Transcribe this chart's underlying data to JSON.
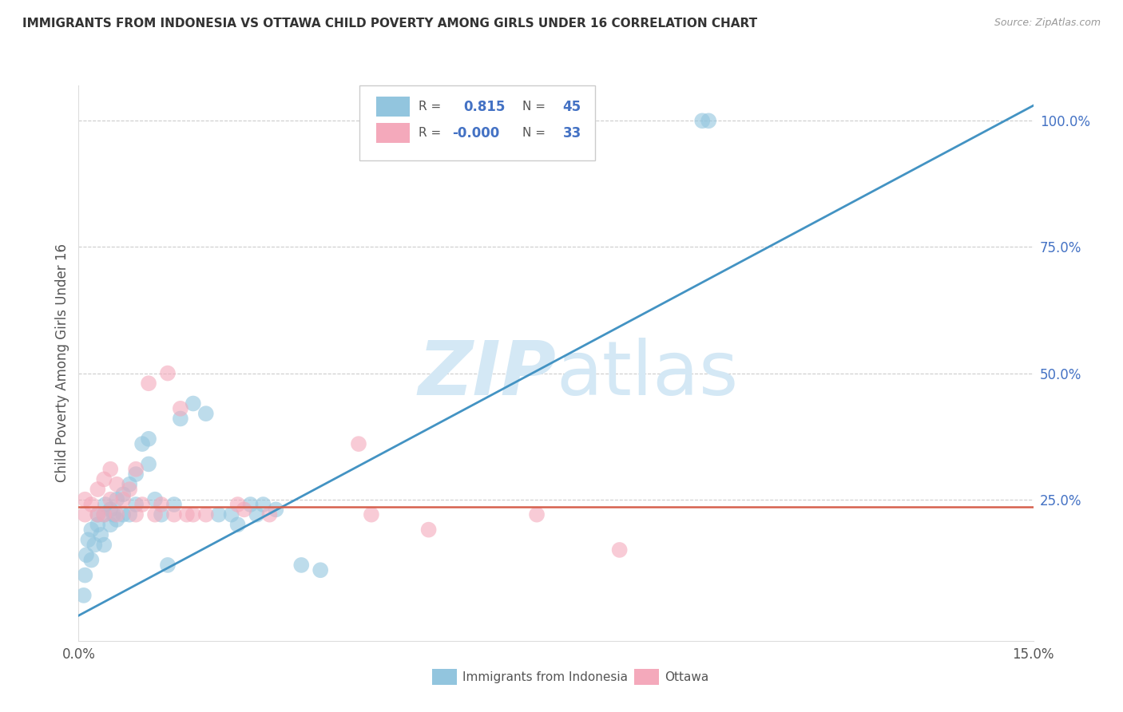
{
  "title": "IMMIGRANTS FROM INDONESIA VS OTTAWA CHILD POVERTY AMONG GIRLS UNDER 16 CORRELATION CHART",
  "source": "Source: ZipAtlas.com",
  "ylabel": "Child Poverty Among Girls Under 16",
  "right_ytick_labels": [
    "100.0%",
    "75.0%",
    "50.0%",
    "25.0%"
  ],
  "right_ytick_values": [
    1.0,
    0.75,
    0.5,
    0.25
  ],
  "legend_blue_r": "0.815",
  "legend_blue_n": "45",
  "legend_pink_r": "-0.000",
  "legend_pink_n": "33",
  "legend_label_blue": "Immigrants from Indonesia",
  "legend_label_pink": "Ottawa",
  "blue_scatter_color": "#92c5de",
  "pink_scatter_color": "#f4a9bb",
  "blue_line_color": "#4393c3",
  "pink_line_color": "#d6604d",
  "title_color": "#333333",
  "right_axis_color": "#4472c4",
  "legend_text_color": "#555555",
  "watermark_color": "#d4e8f5",
  "xmin": 0.0,
  "xmax": 0.15,
  "ymin": -0.03,
  "ymax": 1.07,
  "blue_scatter_x": [
    0.0008,
    0.001,
    0.0012,
    0.0015,
    0.002,
    0.002,
    0.0025,
    0.003,
    0.003,
    0.0035,
    0.004,
    0.004,
    0.0042,
    0.005,
    0.005,
    0.0055,
    0.006,
    0.006,
    0.007,
    0.007,
    0.008,
    0.008,
    0.009,
    0.009,
    0.01,
    0.011,
    0.011,
    0.012,
    0.013,
    0.014,
    0.015,
    0.016,
    0.018,
    0.02,
    0.022,
    0.024,
    0.025,
    0.027,
    0.028,
    0.029,
    0.031,
    0.035,
    0.038,
    0.098,
    0.099
  ],
  "blue_scatter_y": [
    0.06,
    0.1,
    0.14,
    0.17,
    0.13,
    0.19,
    0.16,
    0.2,
    0.22,
    0.18,
    0.16,
    0.22,
    0.24,
    0.2,
    0.23,
    0.22,
    0.21,
    0.25,
    0.22,
    0.26,
    0.22,
    0.28,
    0.24,
    0.3,
    0.36,
    0.32,
    0.37,
    0.25,
    0.22,
    0.12,
    0.24,
    0.41,
    0.44,
    0.42,
    0.22,
    0.22,
    0.2,
    0.24,
    0.22,
    0.24,
    0.23,
    0.12,
    0.11,
    1.0,
    1.0
  ],
  "pink_scatter_x": [
    0.001,
    0.001,
    0.002,
    0.003,
    0.003,
    0.004,
    0.004,
    0.005,
    0.005,
    0.006,
    0.006,
    0.007,
    0.008,
    0.009,
    0.009,
    0.01,
    0.011,
    0.012,
    0.013,
    0.014,
    0.015,
    0.016,
    0.017,
    0.018,
    0.02,
    0.025,
    0.026,
    0.03,
    0.044,
    0.046,
    0.055,
    0.072,
    0.085
  ],
  "pink_scatter_y": [
    0.22,
    0.25,
    0.24,
    0.22,
    0.27,
    0.22,
    0.29,
    0.25,
    0.31,
    0.22,
    0.28,
    0.25,
    0.27,
    0.22,
    0.31,
    0.24,
    0.48,
    0.22,
    0.24,
    0.5,
    0.22,
    0.43,
    0.22,
    0.22,
    0.22,
    0.24,
    0.23,
    0.22,
    0.36,
    0.22,
    0.19,
    0.22,
    0.15
  ],
  "pink_line_y": 0.235,
  "blue_line_x0": 0.0,
  "blue_line_y0": 0.02,
  "blue_line_x1": 0.15,
  "blue_line_y1": 1.03
}
